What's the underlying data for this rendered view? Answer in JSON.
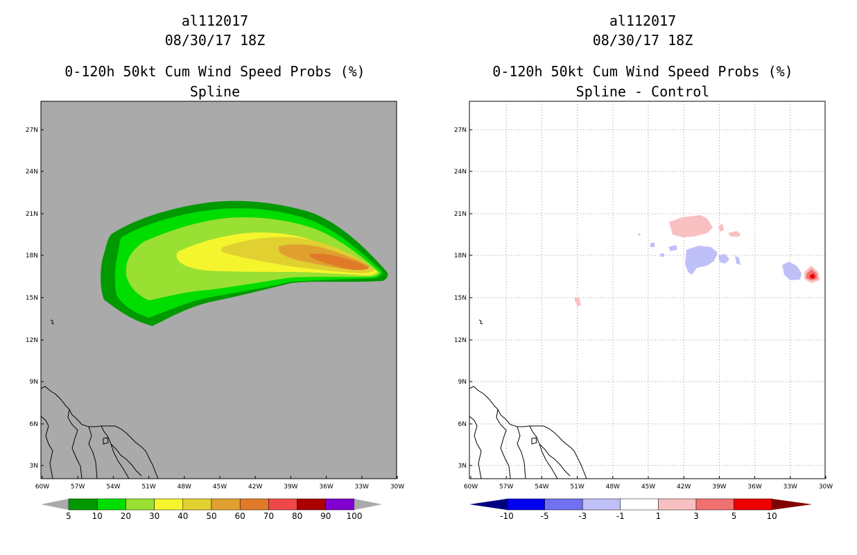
{
  "left": {
    "storm": "al112017",
    "datetime": "08/30/17 18Z",
    "product": "0-120h 50kt Cum Wind Speed Probs (%)",
    "subtitle": "Spline",
    "background": "#aaaaaa",
    "colorbar": {
      "labels": [
        "5",
        "10",
        "20",
        "30",
        "40",
        "50",
        "60",
        "70",
        "80",
        "90",
        "100"
      ],
      "colors": [
        "#009900",
        "#00dd00",
        "#99e033",
        "#f5f52e",
        "#e0d030",
        "#e0a030",
        "#e07a28",
        "#f04848",
        "#aa0000",
        "#8000d0"
      ],
      "arrow_color": "#aaaaaa"
    }
  },
  "right": {
    "storm": "al112017",
    "datetime": "08/30/17 18Z",
    "product": "0-120h 50kt Cum Wind Speed Probs (%)",
    "subtitle": "Spline - Control",
    "background": "#ffffff",
    "colorbar": {
      "labels": [
        "-10",
        "-5",
        "-3",
        "-1",
        "1",
        "3",
        "5",
        "10"
      ],
      "colors": [
        "#0000ee",
        "#7070f0",
        "#c0c0f8",
        "#ffffff",
        "#f8c0c0",
        "#f07070",
        "#ee0000"
      ],
      "arrow_left": "#000080",
      "arrow_right": "#800000"
    }
  },
  "axes": {
    "lon_labels": [
      "60W",
      "57W",
      "54W",
      "51W",
      "48W",
      "45W",
      "42W",
      "39W",
      "36W",
      "33W",
      "30W"
    ],
    "lat_labels": [
      "3N",
      "6N",
      "9N",
      "12N",
      "15N",
      "18N",
      "21N",
      "24N",
      "27N"
    ]
  }
}
